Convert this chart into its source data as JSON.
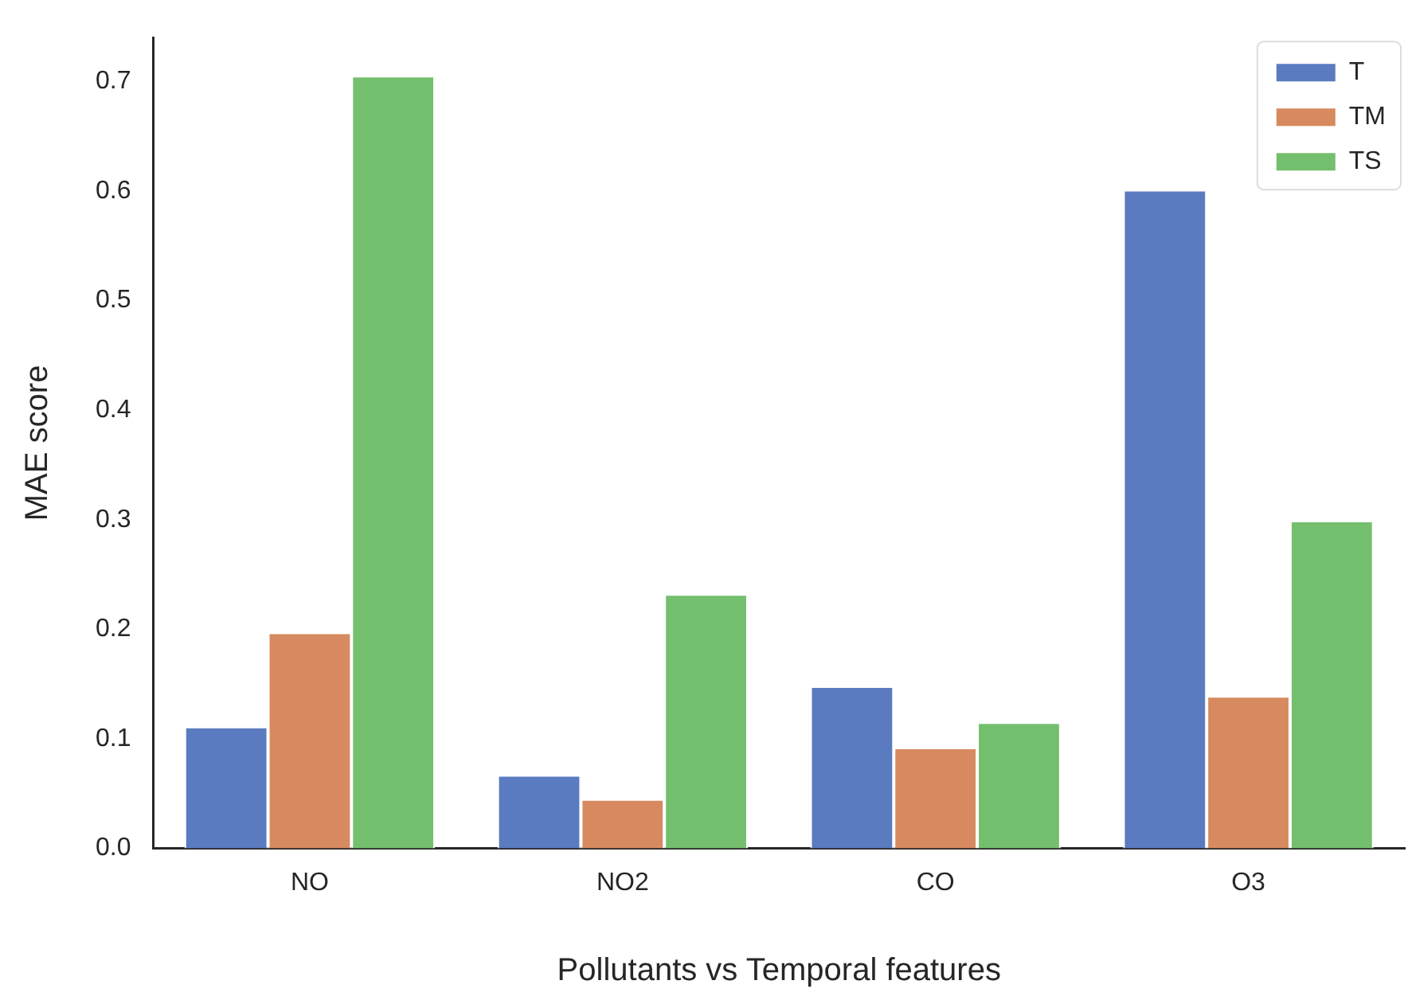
{
  "chart_data": {
    "type": "bar",
    "xlabel": "Pollutants vs Temporal features",
    "ylabel": "MAE score",
    "categories": [
      "NO",
      "NO2",
      "CO",
      "O3"
    ],
    "series": [
      {
        "name": "T",
        "color": "#5a7bbf",
        "values": [
          0.111,
          0.067,
          0.148,
          0.601
        ]
      },
      {
        "name": "TM",
        "color": "#d78a5f",
        "values": [
          0.197,
          0.045,
          0.092,
          0.139
        ]
      },
      {
        "name": "TS",
        "color": "#74bf6e",
        "values": [
          0.705,
          0.232,
          0.115,
          0.299
        ]
      }
    ],
    "ylim": [
      0,
      0.74
    ],
    "yticks": [
      {
        "value": 0,
        "label": "0.0"
      },
      0.1,
      0.2,
      0.3,
      0.4,
      0.5,
      0.6,
      0.7
    ],
    "grid": false,
    "legend": "top right"
  }
}
